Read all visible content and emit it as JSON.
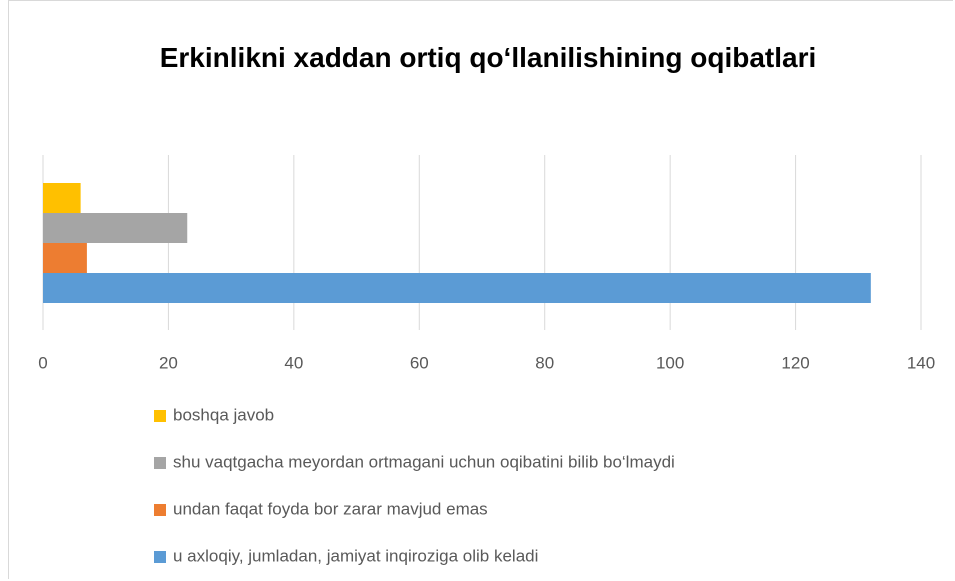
{
  "chart_data": {
    "type": "bar",
    "orientation": "horizontal",
    "title": "Erkinlikni xaddan ortiq qo‘llanilishining oqibatlari",
    "categories": [
      null
    ],
    "series": [
      {
        "name": "u axloqiy, jumladan, jamiyat inqiroziga olib keladi",
        "color": "#5b9bd5",
        "values": [
          132
        ]
      },
      {
        "name": "undan faqat foyda bor zarar mavjud emas",
        "color": "#ed7d31",
        "values": [
          7
        ]
      },
      {
        "name": "shu vaqtgacha meyordan ortmagani uchun oqibatini bilib bo‘lmaydi",
        "color": "#a5a5a5",
        "values": [
          23
        ]
      },
      {
        "name": "boshqa javob",
        "color": "#ffc000",
        "values": [
          6
        ]
      }
    ],
    "xlim": [
      0,
      140
    ],
    "xticks": [
      0,
      20,
      40,
      60,
      80,
      100,
      120,
      140
    ],
    "grid": true,
    "legend": "bottom"
  }
}
